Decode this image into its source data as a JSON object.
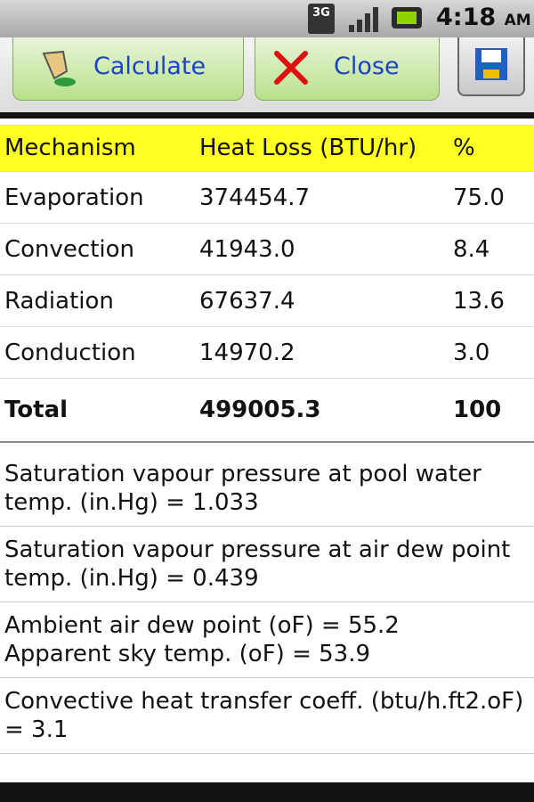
{
  "status_bar": {
    "network": "3G",
    "time": "4:18",
    "meridiem": "AM"
  },
  "toolbar": {
    "buttons": [
      "Calculate",
      "Close"
    ]
  },
  "table": {
    "header": [
      "Mechanism",
      "Heat Loss (BTU/hr)",
      "%"
    ],
    "rows": [
      [
        "Evaporation",
        "374454.7",
        "75.0"
      ],
      [
        "Convection",
        "41943.0",
        "8.4"
      ],
      [
        "Radiation",
        "67637.4",
        "13.6"
      ],
      [
        "Conduction",
        "14970.2",
        "3.0"
      ]
    ],
    "total": [
      "Total",
      "499005.3",
      "100"
    ]
  },
  "info": [
    [
      "Saturation vapour pressure at pool water temp. (in.Hg) = 1.033"
    ],
    [
      "Saturation vapour pressure at air dew point temp. (in.Hg) = 0.439"
    ],
    [
      "Ambient air dew point (oF) = 55.2",
      "Apparent sky temp. (oF) = 53.9"
    ],
    [
      "Convective heat transfer coeff. (btu/h.ft2.oF) = 3.1"
    ]
  ]
}
